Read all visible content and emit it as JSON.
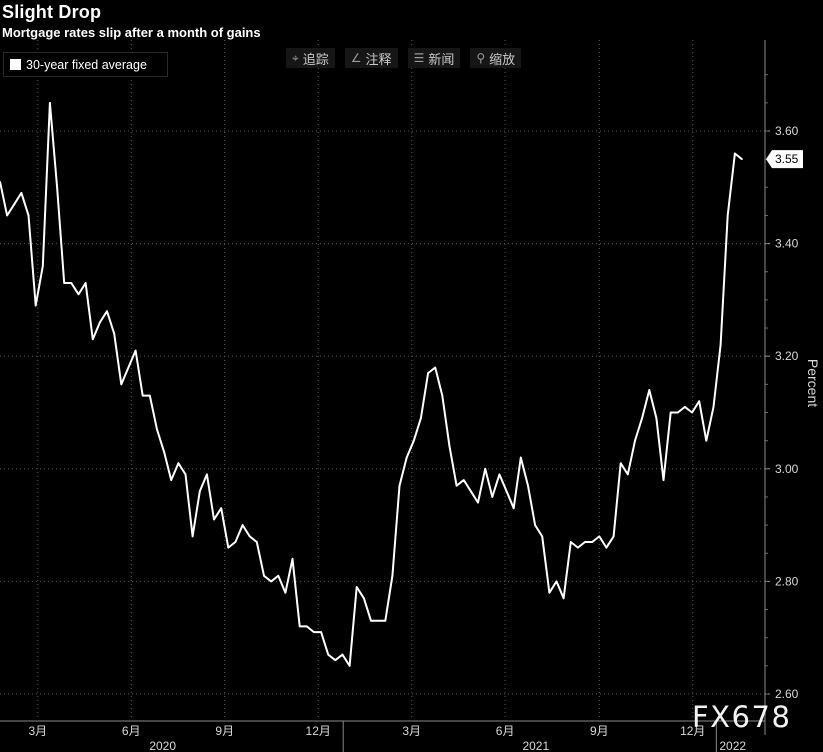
{
  "header": {
    "title": "Slight Drop",
    "subtitle": "Mortgage rates slip after a month of gains"
  },
  "legend": {
    "label": "30-year fixed average",
    "color": "#ffffff"
  },
  "toolbar": {
    "items": [
      {
        "icon": "crosshair-icon",
        "label": "追踪"
      },
      {
        "icon": "annotate-icon",
        "label": "注释"
      },
      {
        "icon": "news-icon",
        "label": "新闻"
      },
      {
        "icon": "zoom-icon",
        "label": "缩放"
      }
    ]
  },
  "watermark": "FX678",
  "chart_data": {
    "type": "line",
    "ylabel": "Percent",
    "ylim": [
      2.6,
      3.75
    ],
    "yticks": [
      "3.60",
      "3.40",
      "3.20",
      "3.00",
      "2.80",
      "2.60"
    ],
    "ytick_values": [
      3.6,
      3.4,
      3.2,
      3.0,
      2.8,
      2.6
    ],
    "grid": true,
    "legend_position": "top-left",
    "x_month_labels": [
      {
        "label": "3月",
        "week": 5.3
      },
      {
        "label": "6月",
        "week": 18.4
      },
      {
        "label": "9月",
        "week": 31.5
      },
      {
        "label": "12月",
        "week": 44.6
      },
      {
        "label": "3月",
        "week": 57.7
      },
      {
        "label": "6月",
        "week": 70.8
      },
      {
        "label": "9月",
        "week": 84.0
      },
      {
        "label": "12月",
        "week": 97.1
      }
    ],
    "x_year_labels": [
      {
        "label": "2020",
        "week": 22.8
      },
      {
        "label": "2021",
        "week": 75.1
      },
      {
        "label": "2022",
        "week": 102.7
      }
    ],
    "year_dividers": [
      48.1,
      100.4
    ],
    "last_value_label": "3.55",
    "series": [
      {
        "name": "30-year fixed average",
        "values": [
          3.51,
          3.45,
          3.47,
          3.49,
          3.45,
          3.29,
          3.36,
          3.65,
          3.5,
          3.33,
          3.33,
          3.31,
          3.33,
          3.23,
          3.26,
          3.28,
          3.24,
          3.15,
          3.18,
          3.21,
          3.13,
          3.13,
          3.07,
          3.03,
          2.98,
          3.01,
          2.99,
          2.88,
          2.96,
          2.99,
          2.91,
          2.93,
          2.86,
          2.87,
          2.9,
          2.88,
          2.87,
          2.81,
          2.8,
          2.81,
          2.78,
          2.84,
          2.72,
          2.72,
          2.71,
          2.71,
          2.67,
          2.66,
          2.67,
          2.65,
          2.79,
          2.77,
          2.73,
          2.73,
          2.73,
          2.81,
          2.97,
          3.02,
          3.05,
          3.09,
          3.17,
          3.18,
          3.13,
          3.04,
          2.97,
          2.98,
          2.96,
          2.94,
          3.0,
          2.95,
          2.99,
          2.96,
          2.93,
          3.02,
          2.97,
          2.9,
          2.88,
          2.78,
          2.8,
          2.77,
          2.87,
          2.86,
          2.87,
          2.87,
          2.88,
          2.86,
          2.88,
          3.01,
          2.99,
          3.05,
          3.09,
          3.14,
          3.09,
          2.98,
          3.1,
          3.1,
          3.11,
          3.1,
          3.12,
          3.05,
          3.11,
          3.22,
          3.45,
          3.56,
          3.55
        ]
      }
    ]
  }
}
